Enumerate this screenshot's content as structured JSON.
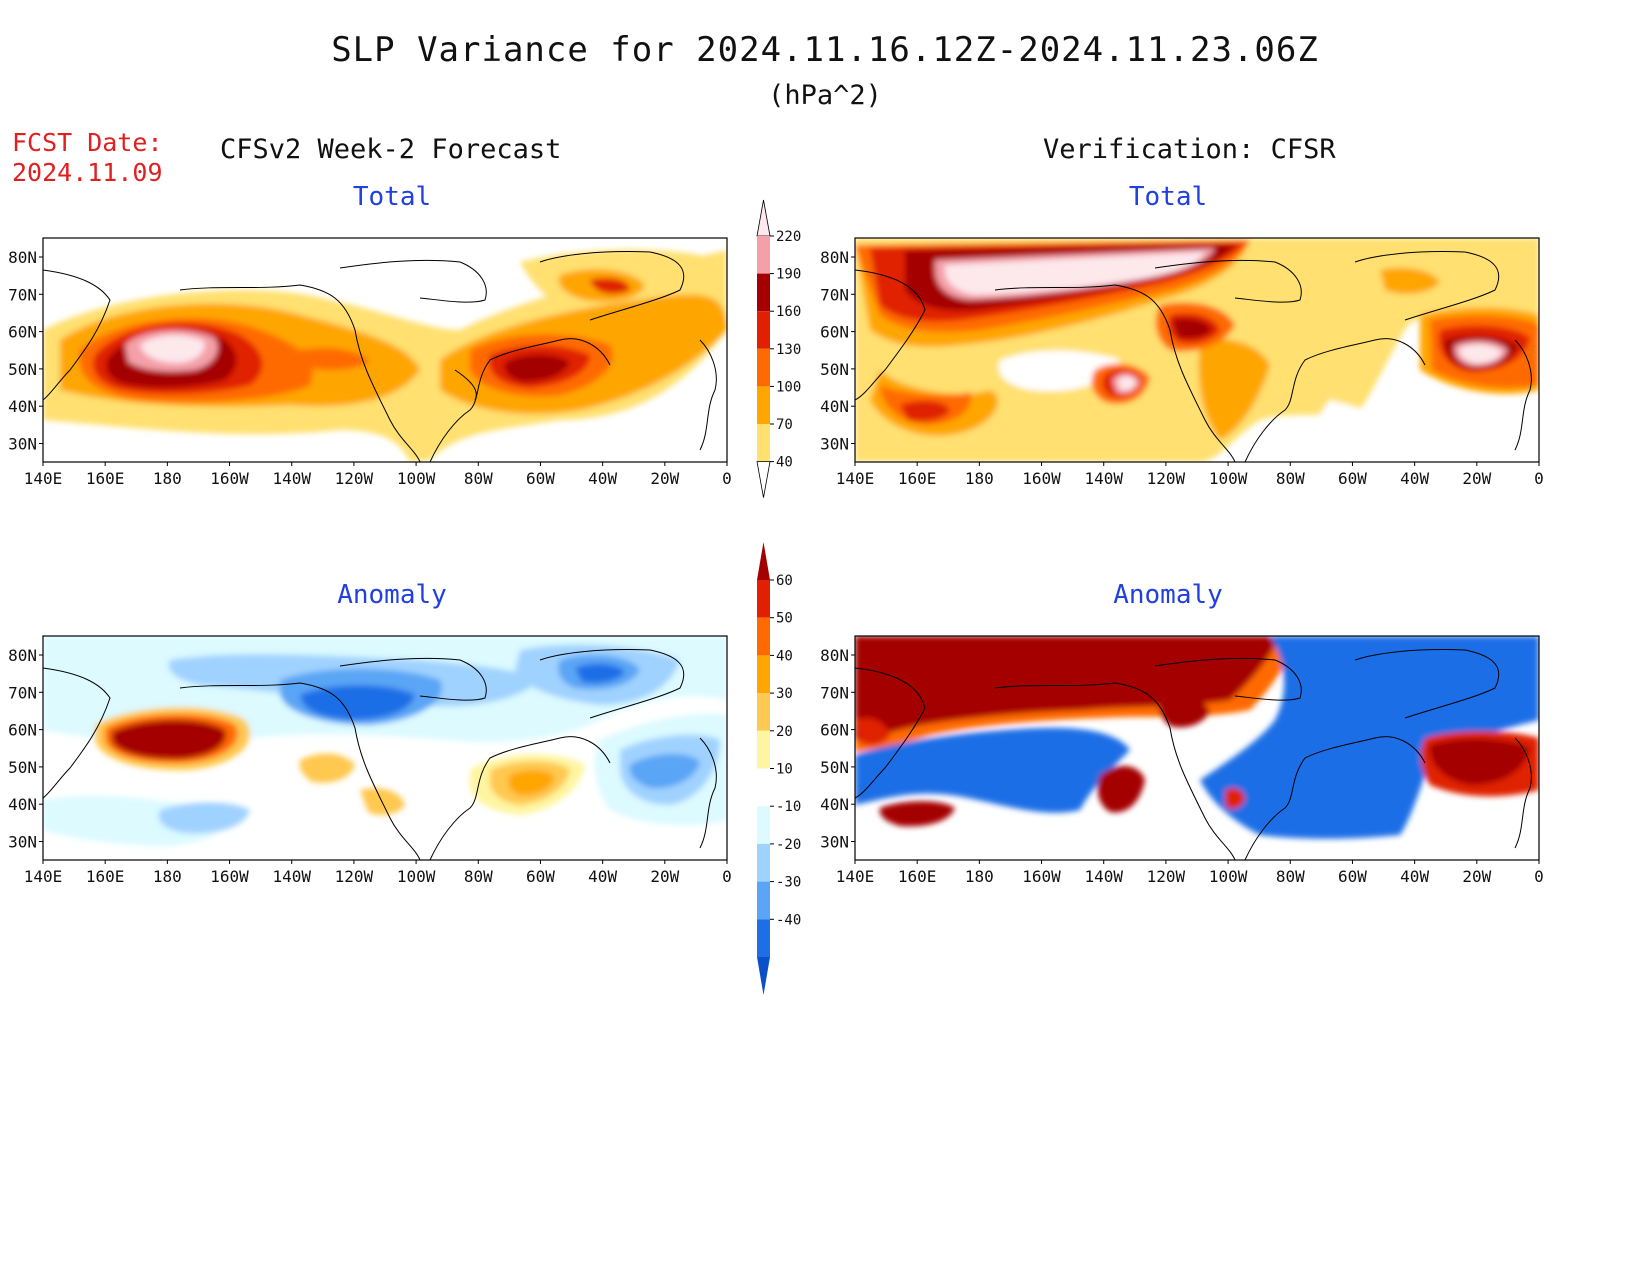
{
  "title": "SLP Variance for 2024.11.16.12Z-2024.11.23.06Z",
  "units": "(hPa^2)",
  "fcst_label": "FCST Date:",
  "fcst_date": "2024.11.09",
  "forecast_header": "CFSv2 Week-2 Forecast",
  "verification_header": "Verification: CFSR",
  "panels": [
    {
      "title": "Total",
      "kind": "total",
      "source": "forecast"
    },
    {
      "title": "Total",
      "kind": "total",
      "source": "verification"
    },
    {
      "title": "Anomaly",
      "kind": "anomaly",
      "source": "forecast"
    },
    {
      "title": "Anomaly",
      "kind": "anomaly",
      "source": "verification"
    }
  ],
  "lat_labels": [
    "80N",
    "70N",
    "60N",
    "50N",
    "40N",
    "30N"
  ],
  "lon_labels": [
    "140E",
    "160E",
    "180",
    "160W",
    "140W",
    "120W",
    "100W",
    "80W",
    "60W",
    "40W",
    "20W",
    "0"
  ],
  "total_colorbar": {
    "labels": [
      "220",
      "190",
      "160",
      "130",
      "100",
      "70",
      "40"
    ],
    "colors": [
      "#fde8ec",
      "#f4a0a8",
      "#a50000",
      "#e02000",
      "#ff6a00",
      "#ffa500",
      "#ffe070"
    ]
  },
  "anomaly_colorbar": {
    "labels": [
      "60",
      "50",
      "40",
      "30",
      "20",
      "10",
      "-10",
      "-20",
      "-30",
      "-40"
    ],
    "colors": [
      "#a50000",
      "#e02000",
      "#ff6a00",
      "#ffa500",
      "#ffc850",
      "#fff5a0",
      "#ffffff",
      "#dcfaff",
      "#a0d2ff",
      "#5aa5f5",
      "#1e6ee6",
      "#0a50c8"
    ]
  }
}
